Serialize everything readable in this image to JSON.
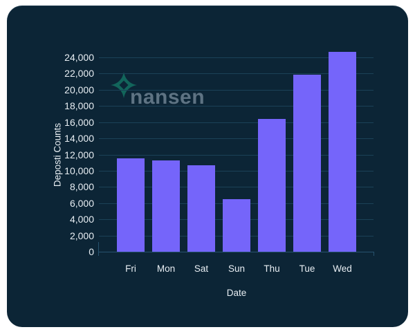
{
  "page": {
    "background": "#ffffff"
  },
  "card": {
    "background": "#0c2536"
  },
  "watermark": {
    "brand": "nansen",
    "icon_color": "#12655b",
    "text_color": "#5e7383"
  },
  "chart_data": {
    "type": "bar",
    "title": "",
    "categories": [
      "Fri",
      "Mon",
      "Sat",
      "Sun",
      "Thu",
      "Tue",
      "Wed"
    ],
    "values": [
      11500,
      11300,
      10700,
      6500,
      16400,
      21900,
      24700
    ],
    "xlabel": "Date",
    "ylabel": "Deposti Counts",
    "ylim": [
      0,
      24000
    ],
    "y_tick_interval": 2000,
    "y_tick_labels": [
      "0",
      "2,000",
      "4,000",
      "6,000",
      "8,000",
      "10,000",
      "12,000",
      "14,000",
      "16,000",
      "18,000",
      "20,000",
      "22,000",
      "24,000"
    ],
    "grid": "horizontal",
    "legend": "none",
    "bar_color": "#7565fa",
    "grid_color": "#1b4258",
    "axis_color": "#27536e",
    "label_color": "#e8eef3"
  }
}
